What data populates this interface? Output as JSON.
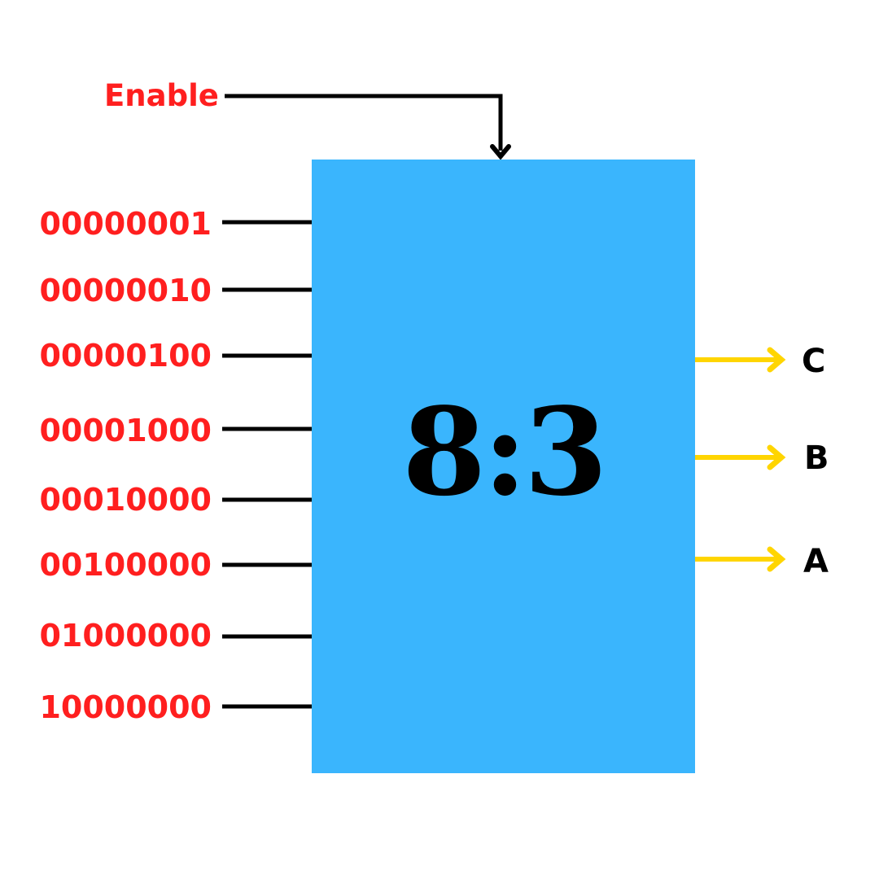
{
  "enable": {
    "label": "Enable"
  },
  "block": {
    "label": "8:3",
    "fill": "#3ab5fd"
  },
  "inputs": [
    {
      "label": "00000001"
    },
    {
      "label": "00000010"
    },
    {
      "label": "00000100"
    },
    {
      "label": "00001000"
    },
    {
      "label": "00010000"
    },
    {
      "label": "00100000"
    },
    {
      "label": "01000000"
    },
    {
      "label": "10000000"
    }
  ],
  "outputs": [
    {
      "label": "C"
    },
    {
      "label": "B"
    },
    {
      "label": "A"
    }
  ],
  "colors": {
    "input_label": "#ff1f1f",
    "output_arrow": "#ffd500",
    "wire": "#000000"
  }
}
